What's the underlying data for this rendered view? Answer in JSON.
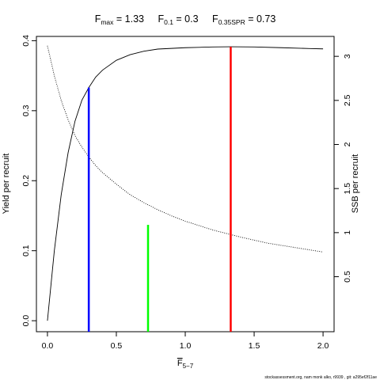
{
  "chart_data": {
    "type": "line",
    "title": {
      "fmax_sym": "F",
      "fmax_sub": "max",
      "fmax_val": " = 1.33",
      "f01_sym": "F",
      "f01_sub": "0.1",
      "f01_val": " = 0.3",
      "fspr_sym": "F",
      "fspr_sub": "0.35SPR",
      "fspr_val": " = 0.73"
    },
    "xlabel_main": "F",
    "xlabel_sub": "5−7",
    "ylabel_left": "Yield per recruit",
    "ylabel_right": "SSB per recruit",
    "xlim": [
      -0.08,
      2.08
    ],
    "ylim_left": [
      -0.0157,
      0.4061
    ],
    "ylim_right": [
      -0.124,
      3.226
    ],
    "x_ticks": [
      0,
      0.5,
      1,
      1.5,
      2
    ],
    "x_tick_labels": [
      "0.0",
      "0.5",
      "1.0",
      "1.5",
      "2.0"
    ],
    "y_ticks_left": [
      0,
      0.1,
      0.2,
      0.3,
      0.4
    ],
    "y_tick_labels_left": [
      "0.0",
      "0.1",
      "0.2",
      "0.3",
      "0.4"
    ],
    "y_ticks_right": [
      0.5,
      1,
      1.5,
      2,
      2.5,
      3
    ],
    "y_tick_labels_right": [
      "0.5",
      "1",
      "1.5",
      "2",
      "2.5",
      "3"
    ],
    "series": [
      {
        "axis": "left",
        "style": "solid",
        "color": "#000000",
        "x": [
          0,
          0.02,
          0.05,
          0.1,
          0.15,
          0.2,
          0.25,
          0.3,
          0.35,
          0.4,
          0.5,
          0.6,
          0.7,
          0.8,
          0.9,
          1.0,
          1.1,
          1.2,
          1.33,
          1.5,
          1.7,
          1.9,
          2.0
        ],
        "y": [
          0,
          0.04,
          0.1,
          0.18,
          0.24,
          0.285,
          0.315,
          0.333,
          0.348,
          0.358,
          0.372,
          0.38,
          0.385,
          0.388,
          0.389,
          0.39,
          0.3905,
          0.391,
          0.3913,
          0.391,
          0.39,
          0.3888,
          0.3883
        ]
      },
      {
        "axis": "right",
        "style": "dotted",
        "color": "#000000",
        "x": [
          0,
          0.05,
          0.1,
          0.15,
          0.2,
          0.25,
          0.3,
          0.35,
          0.4,
          0.5,
          0.6,
          0.7,
          0.8,
          0.9,
          1.0,
          1.2,
          1.4,
          1.6,
          1.8,
          2.0
        ],
        "y": [
          3.12,
          2.78,
          2.5,
          2.28,
          2.1,
          1.97,
          1.86,
          1.76,
          1.68,
          1.55,
          1.43,
          1.34,
          1.26,
          1.19,
          1.13,
          1.03,
          0.95,
          0.88,
          0.83,
          0.78
        ]
      }
    ],
    "reference_lines": [
      {
        "name": "F0.1",
        "x": 0.3,
        "y_top": 0.333,
        "color": "#0000ff"
      },
      {
        "name": "F0.35SPR",
        "x": 0.73,
        "y_top": 0.137,
        "color": "#00ff00"
      },
      {
        "name": "Fmax",
        "x": 1.33,
        "y_top": 0.3913,
        "color": "#ff0000"
      }
    ],
    "footer": "stockassessment.org, nam monk alko, r9939 , git: a295ef2f11ae"
  }
}
